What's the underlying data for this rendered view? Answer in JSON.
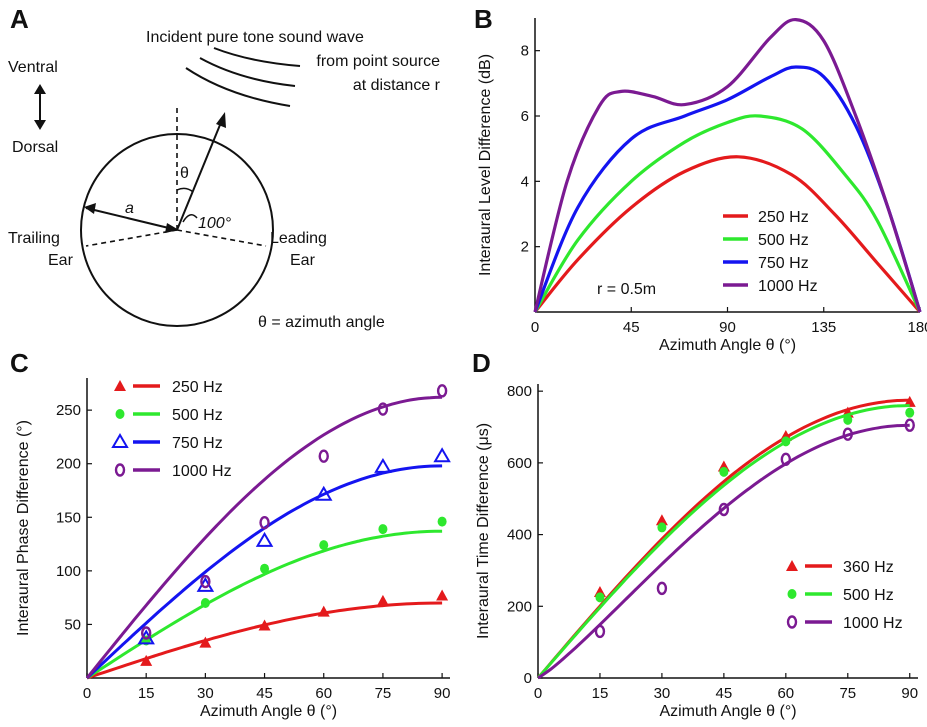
{
  "panel_letters": {
    "a": "A",
    "b": "B",
    "c": "C",
    "d": "D"
  },
  "diagram": {
    "wave_label": [
      "Incident  pure tone sound wave",
      "from point source",
      "at distance r"
    ],
    "ventral": "Ventral",
    "dorsal": "Dorsal",
    "theta_symbol": "θ",
    "radius_label": "a",
    "angle_label": "100°",
    "trailing_ear": [
      "Trailing",
      "Ear"
    ],
    "leading_ear": [
      "Leading",
      "Ear"
    ],
    "caption": "θ = azimuth angle"
  },
  "chart_data": [
    {
      "id": "B",
      "type": "line",
      "xlabel": "Azimuth Angle θ (°)",
      "ylabel": "Interaural Level Difference (dB)",
      "xlim": [
        0,
        180
      ],
      "ylim": [
        0,
        9
      ],
      "xticks": [
        0,
        45,
        90,
        135,
        180
      ],
      "yticks": [
        2,
        4,
        6,
        8
      ],
      "annotation": "r = 0.5m",
      "legend_position": "lower-right",
      "series": [
        {
          "name": "250 Hz",
          "color": "#e41a1c",
          "x": [
            0,
            20,
            45,
            70,
            95,
            120,
            140,
            160,
            180
          ],
          "y": [
            0,
            1.6,
            3.2,
            4.3,
            4.75,
            4.2,
            3.0,
            1.5,
            0
          ]
        },
        {
          "name": "500 Hz",
          "color": "#2ee82e",
          "x": [
            0,
            20,
            45,
            70,
            90,
            105,
            125,
            145,
            160,
            180
          ],
          "y": [
            0,
            2.2,
            4.0,
            5.2,
            5.8,
            6.0,
            5.6,
            4.2,
            2.8,
            0
          ]
        },
        {
          "name": "750 Hz",
          "color": "#1414f0",
          "x": [
            0,
            20,
            45,
            70,
            90,
            110,
            122,
            135,
            150,
            165,
            180
          ],
          "y": [
            0,
            3.2,
            5.3,
            6.0,
            6.5,
            7.2,
            7.5,
            7.2,
            5.7,
            3.2,
            0
          ]
        },
        {
          "name": "1000 Hz",
          "color": "#7b1a92",
          "x": [
            0,
            15,
            30,
            40,
            55,
            70,
            90,
            110,
            122,
            135,
            150,
            165,
            180
          ],
          "y": [
            0,
            4.0,
            6.3,
            6.75,
            6.6,
            6.35,
            6.9,
            8.4,
            8.95,
            8.3,
            6.0,
            3.2,
            0
          ]
        }
      ]
    },
    {
      "id": "C",
      "type": "scatter",
      "xlabel": "Azimuth Angle θ (°)",
      "ylabel": "Interaural Phase Difference (°)",
      "xlim": [
        0,
        92
      ],
      "ylim": [
        0,
        280
      ],
      "xticks": [
        0,
        15,
        30,
        45,
        60,
        75,
        90
      ],
      "yticks": [
        50,
        100,
        150,
        200,
        250
      ],
      "legend_position": "top-left",
      "series": [
        {
          "name": "250 Hz",
          "color": "#e41a1c",
          "marker": "triangle-filled",
          "points_x": [
            15,
            30,
            45,
            60,
            75,
            90
          ],
          "points_y": [
            16,
            33,
            49,
            62,
            72,
            77
          ],
          "fit_max": 70
        },
        {
          "name": "500 Hz",
          "color": "#2ee82e",
          "marker": "circle-filled",
          "points_x": [
            15,
            30,
            45,
            60,
            75,
            90
          ],
          "points_y": [
            35,
            70,
            102,
            124,
            139,
            146
          ],
          "fit_max": 137
        },
        {
          "name": "750 Hz",
          "color": "#1414f0",
          "marker": "triangle-open",
          "points_x": [
            15,
            30,
            45,
            60,
            75,
            90
          ],
          "points_y": [
            37,
            86,
            128,
            171,
            197,
            207
          ],
          "fit_max": 198
        },
        {
          "name": "1000 Hz",
          "color": "#7b1a92",
          "marker": "circle-open",
          "points_x": [
            15,
            30,
            45,
            60,
            75,
            90
          ],
          "points_y": [
            42,
            90,
            145,
            207,
            251,
            268
          ],
          "fit_max": 262
        }
      ]
    },
    {
      "id": "D",
      "type": "scatter",
      "xlabel": "Azimuth Angle θ (°)",
      "ylabel": "Interaural Time Difference (μs)",
      "xlim": [
        0,
        92
      ],
      "ylim": [
        0,
        820
      ],
      "xticks": [
        0,
        15,
        30,
        45,
        60,
        75,
        90
      ],
      "yticks": [
        0,
        200,
        400,
        600,
        800
      ],
      "legend_position": "lower-right",
      "series": [
        {
          "name": "360 Hz",
          "color": "#e41a1c",
          "marker": "triangle-filled",
          "points_x": [
            15,
            30,
            45,
            60,
            75,
            90
          ],
          "points_y": [
            240,
            440,
            590,
            675,
            740,
            770
          ],
          "fit_max": 775
        },
        {
          "name": "500 Hz",
          "color": "#2ee82e",
          "marker": "circle-filled",
          "points_x": [
            15,
            30,
            45,
            60,
            75,
            90
          ],
          "points_y": [
            225,
            420,
            575,
            660,
            720,
            740
          ],
          "fit_max": 760
        },
        {
          "name": "1000 Hz",
          "color": "#7b1a92",
          "marker": "circle-open",
          "points_x": [
            15,
            30,
            45,
            60,
            75,
            90
          ],
          "points_y": [
            130,
            250,
            470,
            610,
            680,
            705
          ],
          "fit_max": 705,
          "fit_steep": true
        }
      ]
    }
  ]
}
